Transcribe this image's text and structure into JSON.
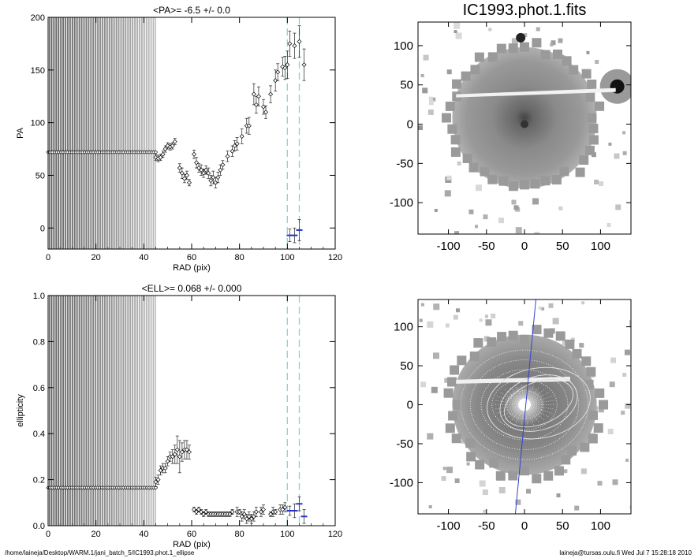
{
  "chart_data": [
    {
      "type": "scatter",
      "title": "<PA>=  -6.5 +/-   0.0",
      "xlabel": "RAD (pix)",
      "ylabel": "PA",
      "xlim": [
        0,
        120
      ],
      "ylim": [
        -20,
        200
      ],
      "xticks": [
        0,
        20,
        40,
        60,
        80,
        100,
        120
      ],
      "yticks": [
        0,
        50,
        100,
        150,
        200
      ],
      "dense_fill_region": [
        0,
        45
      ],
      "dense_value": 72,
      "reference_lines_x": [
        100,
        105
      ],
      "colors": {
        "points": "#000000",
        "highlight": "#2233cc",
        "reference": "#7fd8d8"
      },
      "series": [
        {
          "points": [
            [
              45,
              67,
              3
            ],
            [
              46,
              66,
              3
            ],
            [
              47,
              67,
              3
            ],
            [
              48,
              70,
              3
            ],
            [
              49,
              75,
              3
            ],
            [
              50,
              78,
              3
            ],
            [
              51,
              77,
              3
            ],
            [
              52,
              78,
              3
            ],
            [
              53,
              82,
              3
            ],
            [
              55,
              57,
              4
            ],
            [
              56,
              52,
              5
            ],
            [
              57,
              47,
              4
            ],
            [
              58,
              50,
              4
            ],
            [
              59,
              43,
              3
            ],
            [
              61,
              70,
              4
            ],
            [
              62,
              62,
              5
            ],
            [
              63,
              57,
              4
            ],
            [
              64,
              55,
              5
            ],
            [
              65,
              52,
              4
            ],
            [
              66,
              55,
              4
            ],
            [
              67,
              52,
              5
            ],
            [
              68,
              45,
              5
            ],
            [
              69,
              48,
              6
            ],
            [
              70,
              43,
              5
            ],
            [
              71,
              48,
              5
            ],
            [
              72,
              55,
              5
            ],
            [
              73,
              60,
              4
            ],
            [
              75,
              68,
              5
            ],
            [
              77,
              73,
              5
            ],
            [
              78,
              78,
              5
            ],
            [
              79,
              80,
              6
            ],
            [
              81,
              87,
              7
            ],
            [
              83,
              97,
              7
            ],
            [
              84,
              97,
              8
            ],
            [
              86,
              127,
              10
            ],
            [
              87,
              117,
              8
            ],
            [
              88,
              125,
              9
            ],
            [
              90,
              115,
              7
            ],
            [
              91,
              110,
              6
            ],
            [
              93,
              127,
              8
            ],
            [
              95,
              140,
              10
            ],
            [
              96,
              148,
              8
            ],
            [
              98,
              153,
              9
            ],
            [
              99,
              152,
              11
            ],
            [
              100,
              155,
              13
            ],
            [
              101,
              175,
              12
            ],
            [
              103,
              173,
              12
            ],
            [
              105,
              177,
              15
            ],
            [
              107,
              155,
              15
            ]
          ]
        },
        {
          "name": "",
          "points": [
            [
              101,
              -7,
              6
            ],
            [
              103,
              -7,
              7
            ],
            [
              105,
              -2,
              10
            ]
          ]
        }
      ]
    },
    {
      "type": "scatter",
      "title": "<ELL>= 0.068 +/-  0.000",
      "xlabel": "RAD (pix)",
      "ylabel": "ellipticity",
      "xlim": [
        0,
        120
      ],
      "ylim": [
        0,
        1
      ],
      "xticks": [
        0,
        20,
        40,
        60,
        80,
        100,
        120
      ],
      "yticks": [
        0.0,
        0.2,
        0.4,
        0.6,
        0.8,
        1.0
      ],
      "dense_fill_region": [
        0,
        45
      ],
      "dense_value": 0.165,
      "reference_lines_x": [
        100,
        105
      ],
      "series": [
        {
          "points": [
            [
              45,
              0.19,
              0.02
            ],
            [
              46,
              0.2,
              0.02
            ],
            [
              47,
              0.24,
              0.02
            ],
            [
              48,
              0.25,
              0.02
            ],
            [
              49,
              0.25,
              0.02
            ],
            [
              50,
              0.28,
              0.02
            ],
            [
              51,
              0.3,
              0.02
            ],
            [
              52,
              0.3,
              0.03
            ],
            [
              53,
              0.31,
              0.04
            ],
            [
              54,
              0.33,
              0.06
            ],
            [
              55,
              0.3,
              0.07
            ],
            [
              56,
              0.32,
              0.04
            ],
            [
              57,
              0.33,
              0.04
            ],
            [
              58,
              0.33,
              0.04
            ],
            [
              59,
              0.32,
              0.03
            ],
            [
              61,
              0.07,
              0.01
            ],
            [
              62,
              0.06,
              0.01
            ],
            [
              63,
              0.07,
              0.01
            ],
            [
              64,
              0.06,
              0.01
            ],
            [
              65,
              0.05,
              0.01
            ],
            [
              66,
              0.06,
              0.01
            ],
            [
              67,
              0.05,
              0.01
            ],
            [
              68,
              0.05,
              0.01
            ],
            [
              69,
              0.05,
              0.01
            ],
            [
              70,
              0.05,
              0.01
            ],
            [
              71,
              0.05,
              0.01
            ],
            [
              72,
              0.05,
              0.01
            ],
            [
              73,
              0.05,
              0.01
            ],
            [
              74,
              0.05,
              0.01
            ],
            [
              75,
              0.05,
              0.01
            ],
            [
              76,
              0.05,
              0.01
            ],
            [
              77,
              0.06,
              0.01
            ],
            [
              79,
              0.06,
              0.02
            ],
            [
              80,
              0.06,
              0.01
            ],
            [
              81,
              0.04,
              0.02
            ],
            [
              82,
              0.05,
              0.02
            ],
            [
              83,
              0.03,
              0.02
            ],
            [
              84,
              0.04,
              0.02
            ],
            [
              85,
              0.03,
              0.02
            ],
            [
              86,
              0.04,
              0.02
            ],
            [
              87,
              0.06,
              0.02
            ],
            [
              89,
              0.06,
              0.02
            ],
            [
              90,
              0.07,
              0.02
            ],
            [
              93,
              0.05,
              0.01
            ],
            [
              94,
              0.06,
              0.02
            ],
            [
              95,
              0.06,
              0.01
            ],
            [
              97,
              0.07,
              0.02
            ],
            [
              98,
              0.07,
              0.02
            ],
            [
              99,
              0.08,
              0.02
            ]
          ]
        },
        {
          "name": "",
          "points": [
            [
              101,
              0.065,
              0.02
            ],
            [
              103,
              0.065,
              0.03
            ],
            [
              105,
              0.095,
              0.03
            ],
            [
              107,
              0.04,
              0.03
            ]
          ]
        }
      ]
    },
    {
      "type": "heatmap",
      "title": "IC1993.phot.1.fits",
      "xlim": [
        -140,
        140
      ],
      "ylim": [
        -140,
        130
      ],
      "xticks": [
        -100,
        -50,
        0,
        50,
        100
      ],
      "yticks": [
        -100,
        -50,
        0,
        50,
        100
      ]
    },
    {
      "type": "heatmap",
      "title": "",
      "xlim": [
        -140,
        140
      ],
      "ylim": [
        -140,
        135
      ],
      "xticks": [
        -100,
        -50,
        0,
        50,
        100
      ],
      "yticks": [
        -100,
        -50,
        0,
        50,
        100
      ],
      "overlay_line_color": "#3344cc"
    }
  ],
  "footer": {
    "path": "/home/laineja/Desktop/WARM.1/jani_batch_5/IC1993.phot.1_ellipse",
    "stamp": "laineja@tursas.oulu.fi  Wed Jul  7 15:28:18 2010"
  }
}
